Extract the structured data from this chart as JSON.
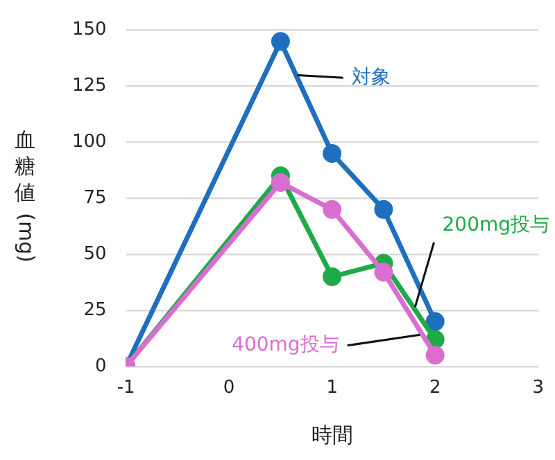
{
  "chart_data": {
    "type": "line",
    "xlabel": "時間",
    "ylabel": "血糖値 (mg)",
    "xlim": [
      -1,
      3
    ],
    "xticks": [
      -1,
      0,
      1,
      2,
      3
    ],
    "ylim": [
      0,
      150
    ],
    "yticks": [
      0,
      25,
      50,
      75,
      100,
      125,
      150
    ],
    "grid": "y",
    "legend": false,
    "marker": "circle",
    "line_style": "solid",
    "series": [
      {
        "name": "対象",
        "color": "#1f6fbf",
        "x": [
          -1,
          0.5,
          1,
          1.5,
          2
        ],
        "values": [
          0,
          145,
          95,
          70,
          20
        ]
      },
      {
        "name": "200mg投与",
        "color": "#1faa4a",
        "x": [
          -1,
          0.5,
          1,
          1.5,
          2
        ],
        "values": [
          0,
          85,
          40,
          46,
          12
        ]
      },
      {
        "name": "400mg投与",
        "color": "#d96ed0",
        "x": [
          -1,
          0.5,
          1,
          1.5,
          2
        ],
        "values": [
          0,
          82,
          70,
          42,
          5
        ]
      }
    ]
  }
}
